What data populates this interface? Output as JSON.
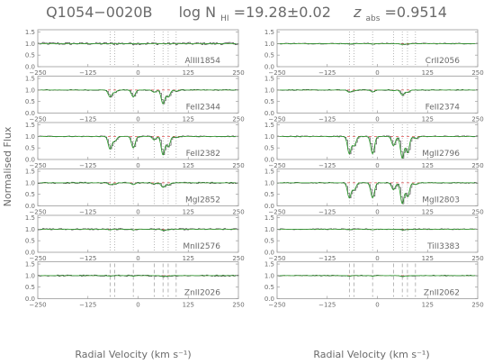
{
  "colors": {
    "frame": "#9a9a9a",
    "data": "#555555",
    "model": "#2ca02c",
    "continuum": "#e05050",
    "component": "#888888",
    "text": "#6a6a6a"
  },
  "header": {
    "object": "Q1054−0020B",
    "nhi_prefix": "log N",
    "nhi_sub": "HI",
    "nhi_value": "=19.28±0.02",
    "z_prefix": "z",
    "z_sub": "abs",
    "z_value": "=0.9514"
  },
  "chart_data": {
    "type": "line",
    "title": "Q1054−0020B   log N_HI=19.28±0.02   z_abs=0.9514",
    "xlabel": "Radial Velocity (km s⁻¹)",
    "ylabel": "Normalised Flux",
    "xlim": [
      -250,
      250
    ],
    "ylim": [
      0,
      1.6
    ],
    "x_ticks": [
      -250,
      -125,
      0,
      125,
      250
    ],
    "y_ticks": [
      0.0,
      0.5,
      1.0,
      1.5
    ],
    "x_tick_labels": [
      "−250",
      "−125",
      "0",
      "125",
      "250"
    ],
    "y_tick_labels": [
      "0.0",
      "0.5",
      "1.0",
      "1.5"
    ],
    "grid": false,
    "continuum_level": 1.0,
    "component_velocities": [
      -70,
      -58,
      -12,
      40,
      62,
      75,
      95
    ],
    "panels": [
      {
        "column": "left",
        "row": 0,
        "ion": "AlIII1854",
        "depths": [
          0,
          0,
          0,
          0,
          0,
          0,
          0
        ],
        "noise": 0.05,
        "dashed": false
      },
      {
        "column": "left",
        "row": 1,
        "ion": "FeII2344",
        "depths": [
          0.3,
          0.1,
          0.3,
          0.1,
          0.6,
          0.3,
          0.05
        ],
        "noise": 0.02,
        "dashed": false
      },
      {
        "column": "left",
        "row": 2,
        "ion": "FeII2382",
        "depths": [
          0.55,
          0.2,
          0.5,
          0.15,
          0.8,
          0.45,
          0.05
        ],
        "noise": 0.02,
        "dashed": false
      },
      {
        "column": "left",
        "row": 3,
        "ion": "MgI2852",
        "depths": [
          0.08,
          0.05,
          0.08,
          0.05,
          0.2,
          0.1,
          0
        ],
        "noise": 0.03,
        "dashed": false
      },
      {
        "column": "left",
        "row": 4,
        "ion": "MnII2576",
        "depths": [
          0.03,
          0,
          0.03,
          0,
          0.05,
          0.03,
          0
        ],
        "noise": 0.03,
        "dashed": false
      },
      {
        "column": "left",
        "row": 5,
        "ion": "ZnII2026",
        "depths": [
          0.02,
          0,
          0.02,
          0,
          0.04,
          0.02,
          0
        ],
        "noise": 0.03,
        "dashed": true
      },
      {
        "column": "right",
        "row": 0,
        "ion": "CrII2056",
        "depths": [
          0.02,
          0,
          0.02,
          0,
          0.04,
          0.02,
          0
        ],
        "noise": 0.02,
        "dashed": false
      },
      {
        "column": "right",
        "row": 1,
        "ion": "FeII2374",
        "depths": [
          0.1,
          0.03,
          0.08,
          0.03,
          0.22,
          0.1,
          0
        ],
        "noise": 0.02,
        "dashed": false
      },
      {
        "column": "right",
        "row": 2,
        "ion": "MgII2796",
        "depths": [
          0.75,
          0.4,
          0.75,
          0.4,
          0.95,
          0.7,
          0.1
        ],
        "noise": 0.02,
        "dashed": false
      },
      {
        "column": "right",
        "row": 3,
        "ion": "MgII2803",
        "depths": [
          0.65,
          0.3,
          0.65,
          0.3,
          0.9,
          0.6,
          0.08
        ],
        "noise": 0.02,
        "dashed": false
      },
      {
        "column": "right",
        "row": 4,
        "ion": "TiII3383",
        "depths": [
          0.02,
          0,
          0.02,
          0,
          0.03,
          0.02,
          0
        ],
        "noise": 0.02,
        "dashed": false
      },
      {
        "column": "right",
        "row": 5,
        "ion": "ZnII2062",
        "depths": [
          0.02,
          0,
          0.02,
          0,
          0.04,
          0.02,
          0
        ],
        "noise": 0.02,
        "dashed": true
      }
    ]
  }
}
